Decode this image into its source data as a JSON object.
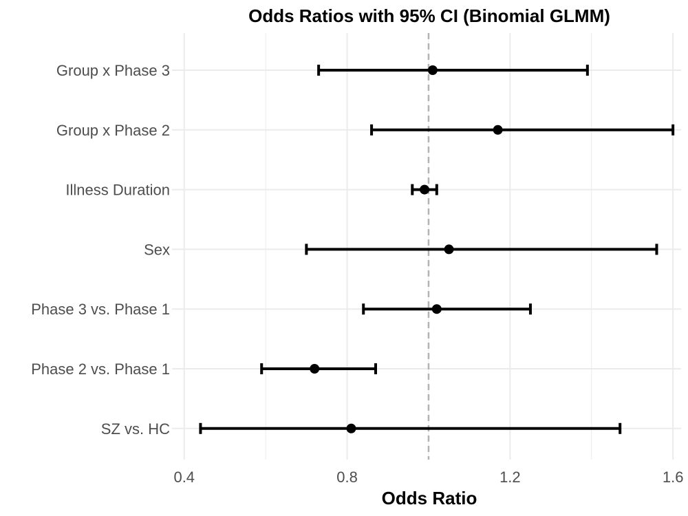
{
  "chart_data": {
    "type": "forest",
    "title": "Odds Ratios with 95% CI (Binomial GLMM)",
    "xlabel": "Odds Ratio",
    "ylabel": "",
    "xlim": [
      0.37,
      1.62
    ],
    "xticks": [
      0.4,
      0.8,
      1.2,
      1.6
    ],
    "xtick_labels": [
      "0.4",
      "0.8",
      "1.2",
      "1.6"
    ],
    "reference_line": 1.0,
    "grid": true,
    "categories": [
      "Group x Phase 3",
      "Group x Phase 2",
      "Illness Duration",
      "Sex",
      "Phase 3 vs. Phase 1",
      "Phase 2 vs. Phase 1",
      "SZ vs. HC"
    ],
    "estimates": [
      1.01,
      1.17,
      0.99,
      1.05,
      1.02,
      0.72,
      0.81
    ],
    "ci_lower": [
      0.73,
      0.86,
      0.96,
      0.7,
      0.84,
      0.59,
      0.44
    ],
    "ci_upper": [
      1.39,
      1.6,
      1.02,
      1.56,
      1.25,
      0.87,
      1.47
    ],
    "colors": {
      "points": "#000000",
      "reference_line": "#b3b3b3",
      "grid": "#ebebeb",
      "tick_text": "#4d4d4d"
    }
  }
}
